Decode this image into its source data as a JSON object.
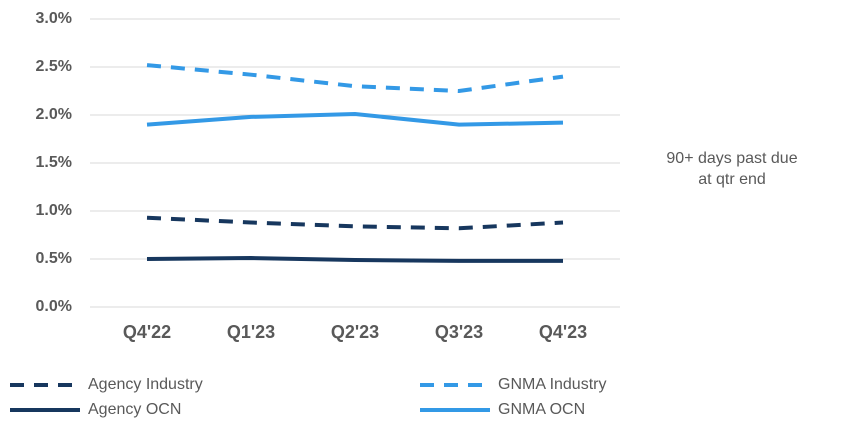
{
  "chart_data": {
    "type": "line",
    "categories": [
      "Q4'22",
      "Q1'23",
      "Q2'23",
      "Q3'23",
      "Q4'23"
    ],
    "series": [
      {
        "name": "Agency Industry",
        "color": "#17375e",
        "style": "dashed",
        "values": [
          0.93,
          0.88,
          0.84,
          0.82,
          0.88
        ]
      },
      {
        "name": "GNMA Industry",
        "color": "#3399e6",
        "style": "dashed",
        "values": [
          2.52,
          2.42,
          2.3,
          2.25,
          2.4
        ]
      },
      {
        "name": "Agency OCN",
        "color": "#17375e",
        "style": "solid",
        "values": [
          0.5,
          0.51,
          0.49,
          0.48,
          0.48
        ]
      },
      {
        "name": "GNMA OCN",
        "color": "#3399e6",
        "style": "solid",
        "values": [
          1.9,
          1.98,
          2.01,
          1.9,
          1.92
        ]
      }
    ],
    "ylim": [
      0,
      3
    ],
    "yticks": [
      {
        "value": 0,
        "label": "0.0%"
      },
      {
        "value": 0.5,
        "label": "0.5%"
      },
      {
        "value": 1,
        "label": "1.0%"
      },
      {
        "value": 1.5,
        "label": "1.5%"
      },
      {
        "value": 2,
        "label": "2.0%"
      },
      {
        "value": 2.5,
        "label": "2.5%"
      },
      {
        "value": 3,
        "label": "3.0%"
      }
    ],
    "grid": true,
    "annotation": [
      "90+ days past due",
      "at qtr end"
    ]
  }
}
